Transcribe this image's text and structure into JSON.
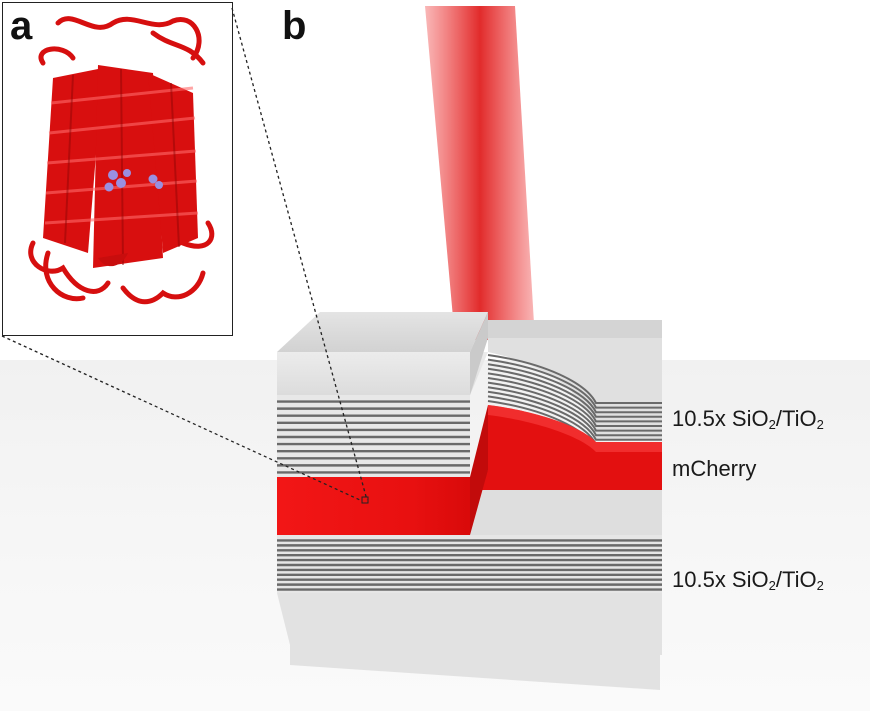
{
  "panels": {
    "a": "a",
    "b": "b"
  },
  "labels": {
    "top_mirror": {
      "prefix": "10.5x SiO",
      "sub1": "2",
      "mid": "/TiO",
      "sub2": "2"
    },
    "emitter": "mCherry",
    "bottom_mirror": {
      "prefix": "10.5x SiO",
      "sub1": "2",
      "mid": "/TiO",
      "sub2": "2"
    }
  },
  "colors": {
    "protein": "#d50f0f",
    "chromophore": "#9a8fe0",
    "laser": "#e52222",
    "emitter_layer": "#ee1111",
    "mirror_stripe": "#6a6a6a",
    "substrate": "#e6e6e6"
  }
}
